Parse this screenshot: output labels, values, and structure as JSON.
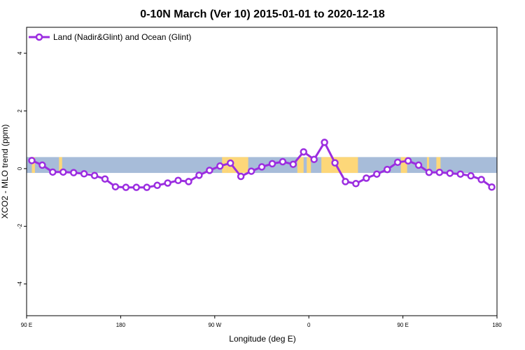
{
  "chart_data": {
    "type": "line",
    "title": "0-10N March (Ver 10)   2015-01-01 to 2020-12-18",
    "xlabel": "Longitude (deg E)",
    "ylabel": "XCO2 - MLO trend (ppm)",
    "x_ticks": [
      {
        "value": 90,
        "label": "90 E"
      },
      {
        "value": 180,
        "label": "180"
      },
      {
        "value": 270,
        "label": "90 W"
      },
      {
        "value": 360,
        "label": "0"
      },
      {
        "value": 450,
        "label": "90 E"
      },
      {
        "value": 540,
        "label": "180"
      }
    ],
    "y_ticks": [
      -4,
      -2,
      0,
      2,
      4
    ],
    "xlim": [
      90,
      540
    ],
    "ylim": [
      -5.1,
      4.9
    ],
    "grid": false,
    "legend_position": "top-left",
    "background_map": {
      "lat_band": "0-10N",
      "ocean_color": "#a7bcd9",
      "land_color": "#fdd779",
      "land_segments": [
        [
          95,
          98
        ],
        [
          121,
          124
        ],
        [
          277,
          282
        ],
        [
          282,
          302
        ],
        [
          349,
          355
        ],
        [
          358,
          362
        ],
        [
          372,
          407
        ],
        [
          448,
          454
        ],
        [
          473,
          475
        ],
        [
          482,
          486
        ]
      ],
      "y_range": [
        -0.15,
        0.4
      ]
    },
    "series": [
      {
        "name": "Land (Nadir&Glint) and Ocean (Glint)",
        "color": "#9b2de0",
        "x": [
          95,
          105,
          115,
          125,
          135,
          145,
          155,
          165,
          175,
          185,
          195,
          205,
          215,
          225,
          235,
          245,
          255,
          265,
          275,
          285,
          295,
          305,
          315,
          325,
          335,
          345,
          355,
          365,
          375,
          385,
          395,
          405,
          415,
          425,
          435,
          445,
          455,
          465,
          475,
          485,
          495,
          505,
          515,
          525,
          535
        ],
        "values": [
          0.28,
          0.12,
          -0.12,
          -0.12,
          -0.14,
          -0.18,
          -0.24,
          -0.36,
          -0.63,
          -0.65,
          -0.65,
          -0.65,
          -0.58,
          -0.5,
          -0.41,
          -0.45,
          -0.23,
          -0.06,
          0.09,
          0.19,
          -0.27,
          -0.09,
          0.06,
          0.17,
          0.24,
          0.15,
          0.58,
          0.32,
          0.91,
          0.2,
          -0.45,
          -0.52,
          -0.33,
          -0.19,
          -0.03,
          0.22,
          0.27,
          0.12,
          -0.13,
          -0.13,
          -0.16,
          -0.19,
          -0.25,
          -0.38,
          -0.64
        ]
      }
    ]
  }
}
